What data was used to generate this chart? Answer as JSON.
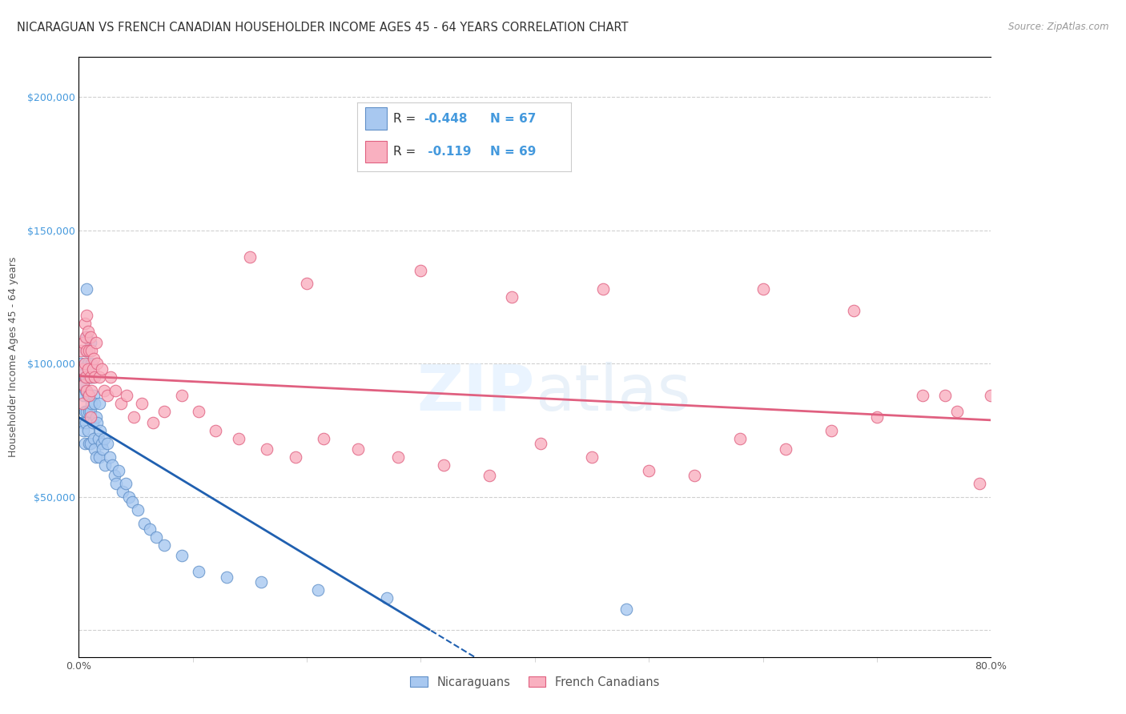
{
  "title": "NICARAGUAN VS FRENCH CANADIAN HOUSEHOLDER INCOME AGES 45 - 64 YEARS CORRELATION CHART",
  "source": "Source: ZipAtlas.com",
  "ylabel": "Householder Income Ages 45 - 64 years",
  "xlim": [
    0.0,
    0.8
  ],
  "ylim": [
    -10000,
    215000
  ],
  "plot_ylim": [
    0,
    210000
  ],
  "background_color": "#ffffff",
  "grid_color": "#d0d0d0",
  "watermark": "ZIPatlas",
  "nic_color_fill": "#a8c8f0",
  "nic_color_edge": "#6090c8",
  "fc_color_fill": "#f9b0c0",
  "fc_color_edge": "#e06080",
  "blue_line_color": "#2060b0",
  "pink_line_color": "#e06080",
  "title_fontsize": 10.5,
  "axis_label_fontsize": 9,
  "tick_fontsize": 9,
  "nic_x": [
    0.002,
    0.003,
    0.003,
    0.004,
    0.004,
    0.004,
    0.005,
    0.005,
    0.005,
    0.006,
    0.006,
    0.006,
    0.007,
    0.007,
    0.007,
    0.007,
    0.008,
    0.008,
    0.008,
    0.009,
    0.009,
    0.009,
    0.01,
    0.01,
    0.01,
    0.01,
    0.011,
    0.011,
    0.012,
    0.012,
    0.013,
    0.013,
    0.014,
    0.014,
    0.015,
    0.015,
    0.016,
    0.017,
    0.018,
    0.018,
    0.019,
    0.02,
    0.021,
    0.022,
    0.023,
    0.025,
    0.027,
    0.029,
    0.031,
    0.033,
    0.035,
    0.038,
    0.041,
    0.044,
    0.047,
    0.052,
    0.057,
    0.062,
    0.068,
    0.075,
    0.09,
    0.105,
    0.13,
    0.16,
    0.21,
    0.27,
    0.48
  ],
  "nic_y": [
    100000,
    92000,
    78000,
    96000,
    88000,
    75000,
    95000,
    82000,
    70000,
    105000,
    90000,
    78000,
    128000,
    110000,
    95000,
    82000,
    100000,
    88000,
    75000,
    95000,
    82000,
    70000,
    108000,
    95000,
    82000,
    70000,
    100000,
    85000,
    95000,
    78000,
    88000,
    72000,
    85000,
    68000,
    80000,
    65000,
    78000,
    72000,
    85000,
    65000,
    75000,
    70000,
    68000,
    72000,
    62000,
    70000,
    65000,
    62000,
    58000,
    55000,
    60000,
    52000,
    55000,
    50000,
    48000,
    45000,
    40000,
    38000,
    35000,
    32000,
    28000,
    22000,
    20000,
    18000,
    15000,
    12000,
    8000
  ],
  "fc_x": [
    0.002,
    0.003,
    0.003,
    0.004,
    0.004,
    0.005,
    0.005,
    0.006,
    0.006,
    0.007,
    0.007,
    0.007,
    0.008,
    0.008,
    0.009,
    0.009,
    0.01,
    0.01,
    0.01,
    0.011,
    0.011,
    0.012,
    0.013,
    0.014,
    0.015,
    0.016,
    0.018,
    0.02,
    0.022,
    0.025,
    0.028,
    0.032,
    0.037,
    0.042,
    0.048,
    0.055,
    0.065,
    0.075,
    0.09,
    0.105,
    0.12,
    0.14,
    0.165,
    0.19,
    0.215,
    0.245,
    0.28,
    0.32,
    0.36,
    0.405,
    0.45,
    0.5,
    0.54,
    0.58,
    0.62,
    0.66,
    0.7,
    0.74,
    0.77,
    0.8,
    0.15,
    0.2,
    0.3,
    0.38,
    0.46,
    0.6,
    0.68,
    0.76,
    0.79
  ],
  "fc_y": [
    105000,
    98000,
    85000,
    108000,
    92000,
    115000,
    100000,
    110000,
    95000,
    118000,
    105000,
    90000,
    112000,
    98000,
    105000,
    88000,
    110000,
    95000,
    80000,
    105000,
    90000,
    98000,
    102000,
    95000,
    108000,
    100000,
    95000,
    98000,
    90000,
    88000,
    95000,
    90000,
    85000,
    88000,
    80000,
    85000,
    78000,
    82000,
    88000,
    82000,
    75000,
    72000,
    68000,
    65000,
    72000,
    68000,
    65000,
    62000,
    58000,
    70000,
    65000,
    60000,
    58000,
    72000,
    68000,
    75000,
    80000,
    88000,
    82000,
    88000,
    140000,
    130000,
    135000,
    125000,
    128000,
    128000,
    120000,
    88000,
    55000
  ]
}
